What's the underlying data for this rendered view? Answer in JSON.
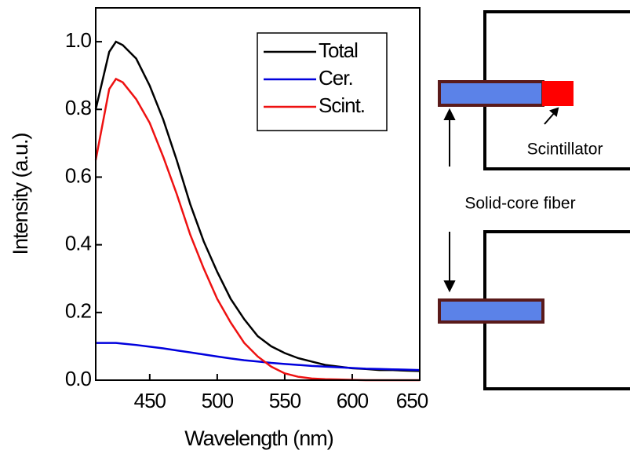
{
  "chart_data": {
    "type": "line",
    "xlabel": "Wavelength (nm)",
    "ylabel": "Intensity (a.u.)",
    "x": [
      410,
      420,
      425,
      430,
      440,
      450,
      460,
      470,
      480,
      490,
      500,
      510,
      520,
      530,
      540,
      550,
      560,
      570,
      580,
      590,
      600,
      610,
      620,
      630,
      640,
      650
    ],
    "series": [
      {
        "name": "Total",
        "color": "#000000",
        "values": [
          0.8,
          0.97,
          1.0,
          0.99,
          0.95,
          0.87,
          0.77,
          0.65,
          0.52,
          0.41,
          0.32,
          0.24,
          0.18,
          0.13,
          0.1,
          0.08,
          0.065,
          0.055,
          0.045,
          0.04,
          0.035,
          0.033,
          0.03,
          0.03,
          0.028,
          0.027
        ]
      },
      {
        "name": "Cer.",
        "color": "#0000dd",
        "values": [
          0.11,
          0.11,
          0.11,
          0.108,
          0.104,
          0.099,
          0.094,
          0.088,
          0.082,
          0.076,
          0.07,
          0.064,
          0.059,
          0.055,
          0.051,
          0.048,
          0.045,
          0.042,
          0.04,
          0.038,
          0.036,
          0.034,
          0.033,
          0.032,
          0.031,
          0.03
        ]
      },
      {
        "name": "Scint.",
        "color": "#ee1111",
        "values": [
          0.65,
          0.86,
          0.89,
          0.88,
          0.83,
          0.76,
          0.66,
          0.55,
          0.43,
          0.33,
          0.24,
          0.17,
          0.11,
          0.07,
          0.04,
          0.02,
          0.01,
          0.005,
          0.003,
          0.002,
          0.001,
          0,
          0,
          0,
          0,
          0
        ]
      }
    ],
    "xlim": [
      410,
      650
    ],
    "ylim": [
      0,
      1.1
    ],
    "xticks": [
      450,
      500,
      550,
      600,
      650
    ],
    "yticks": [
      {
        "value": 0,
        "label": "0.0"
      },
      0.2,
      0.4,
      0.6,
      0.8,
      {
        "value": 1,
        "label": "1.0"
      }
    ],
    "legend": "upper right"
  },
  "diagram": {
    "labels": {
      "scintillator": "Scintillator",
      "fiber": "Solid-core fiber"
    }
  }
}
